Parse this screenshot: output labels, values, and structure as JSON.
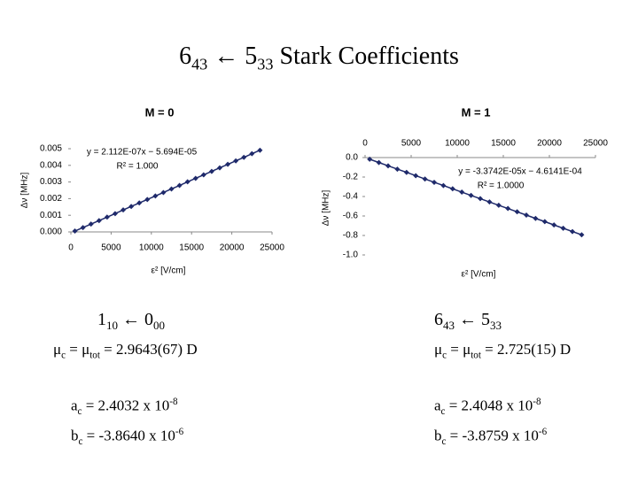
{
  "title": [
    "6",
    "43",
    " ← 5",
    "33",
    " Stark Coefficients"
  ],
  "chart_data": [
    {
      "type": "scatter",
      "title": "M = 0",
      "annotations": [
        "y = 2.112E-07x − 5.694E-05",
        "R² = 1.000"
      ],
      "xlabel": "ε² [V/cm]",
      "ylabel": "Δν [MHz]",
      "color": "#1f2a6b",
      "xaxis_position": "bottom",
      "x": [
        500,
        1500,
        2500,
        3500,
        4500,
        5500,
        6500,
        7500,
        8500,
        9500,
        10500,
        11500,
        12500,
        13500,
        14500,
        15500,
        16500,
        17500,
        18500,
        19500,
        20500,
        21500,
        22500,
        23500
      ],
      "values": [
        5e-05,
        0.00026,
        0.00047,
        0.00068,
        0.00089,
        0.0011,
        0.00132,
        0.00153,
        0.00174,
        0.00195,
        0.00216,
        0.00237,
        0.00258,
        0.00279,
        0.00301,
        0.00322,
        0.00343,
        0.00364,
        0.00385,
        0.00406,
        0.00427,
        0.00448,
        0.0047,
        0.00491
      ],
      "xlim": [
        0,
        25000
      ],
      "xticks": [
        0,
        5000,
        10000,
        15000,
        20000,
        25000
      ],
      "ylim": [
        0,
        0.005
      ],
      "yticks": [
        {
          "value": 0,
          "label": "0.000"
        },
        0.001,
        0.002,
        0.003,
        0.004,
        0.005
      ]
    },
    {
      "type": "scatter",
      "title": "M = 1",
      "annotations": [
        "y = -3.3742E-05x − 4.6141E-04",
        "R² = 1.0000"
      ],
      "xlabel": "ε² [V/cm]",
      "ylabel": "Δν [MHz]",
      "color": "#1f2a6b",
      "xaxis_position": "top",
      "x": [
        500,
        1500,
        2500,
        3500,
        4500,
        5500,
        6500,
        7500,
        8500,
        9500,
        10500,
        11500,
        12500,
        13500,
        14500,
        15500,
        16500,
        17500,
        18500,
        19500,
        20500,
        21500,
        22500,
        23500
      ],
      "values": [
        -0.017,
        -0.051,
        -0.085,
        -0.119,
        -0.152,
        -0.186,
        -0.22,
        -0.254,
        -0.287,
        -0.321,
        -0.355,
        -0.389,
        -0.422,
        -0.456,
        -0.49,
        -0.523,
        -0.557,
        -0.591,
        -0.625,
        -0.658,
        -0.692,
        -0.726,
        -0.76,
        -0.793
      ],
      "xlim": [
        0,
        25000
      ],
      "xticks": [
        0,
        5000,
        10000,
        15000,
        20000,
        25000
      ],
      "ylim": [
        -1,
        0
      ],
      "yticks": [
        {
          "value": 0,
          "label": "0.0"
        },
        -0.2,
        -0.4,
        -0.6,
        -0.8,
        {
          "value": -1,
          "label": "-1.0"
        }
      ]
    }
  ],
  "columns": [
    {
      "transition": [
        "1",
        "10",
        " ← 0",
        "00"
      ],
      "mu": [
        "μ",
        "c",
        " = μ",
        "tot",
        " = 2.9643(67) D"
      ],
      "a": [
        "a",
        "c",
        " = 2.4032 x 10",
        "-8"
      ],
      "b": [
        "b",
        "c",
        " = -3.8640 x 10",
        "-6"
      ]
    },
    {
      "transition": [
        "6",
        "43",
        " ← 5",
        "33"
      ],
      "mu": [
        "μ",
        "c",
        " = μ",
        "tot",
        " = 2.725(15) D"
      ],
      "a": [
        "a",
        "c",
        " = 2.4048 x 10",
        "-8"
      ],
      "b": [
        "b",
        "c",
        " = -3.8759 x 10",
        "-6"
      ]
    }
  ]
}
